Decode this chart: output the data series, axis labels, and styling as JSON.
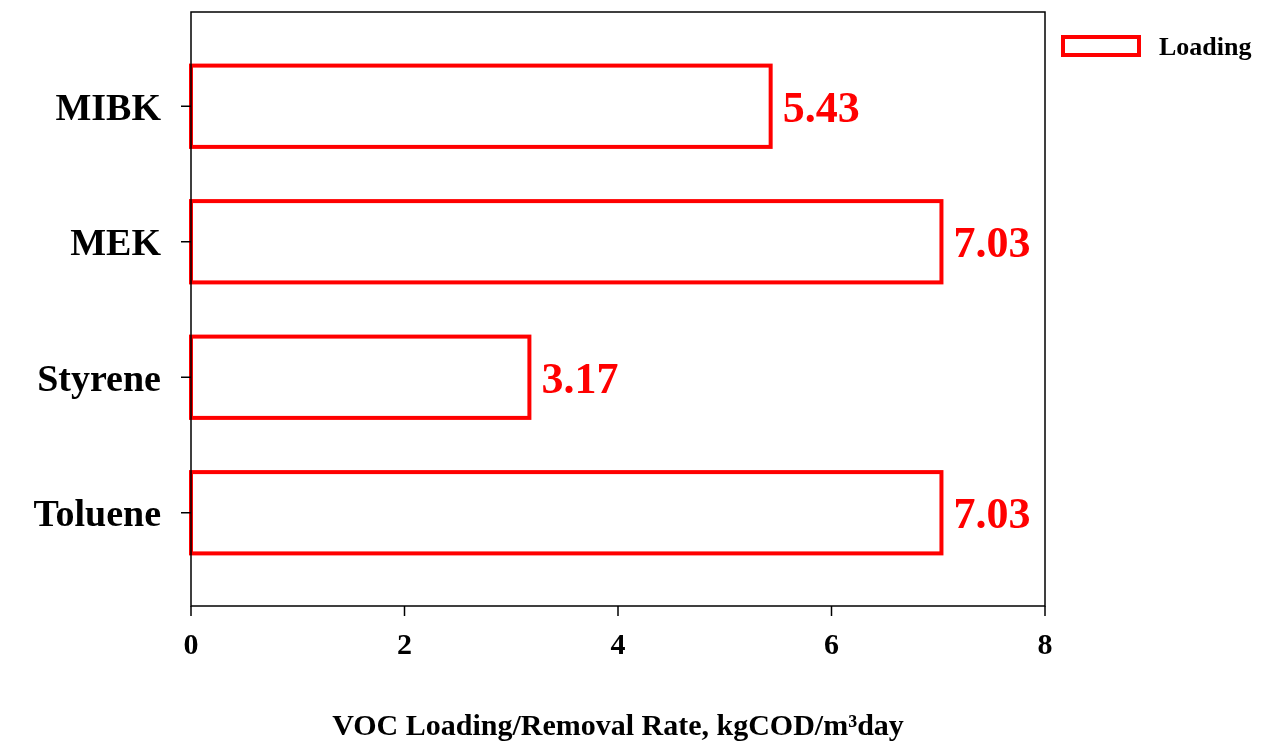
{
  "chart_data": {
    "type": "bar",
    "orientation": "horizontal",
    "xlabel": "VOC Loading/Removal Rate, kgCOD/m³day",
    "categories": [
      "MIBK",
      "MEK",
      "Styrene",
      "Toluene"
    ],
    "series": [
      {
        "name": "Loading",
        "color": "#ff0000",
        "values": [
          5.43,
          7.03,
          3.17,
          7.03
        ]
      }
    ],
    "xlim": [
      0,
      8
    ],
    "xticks": [
      0,
      2,
      4,
      6,
      8
    ],
    "data_labels": true,
    "legend": "top right",
    "grid": false
  }
}
